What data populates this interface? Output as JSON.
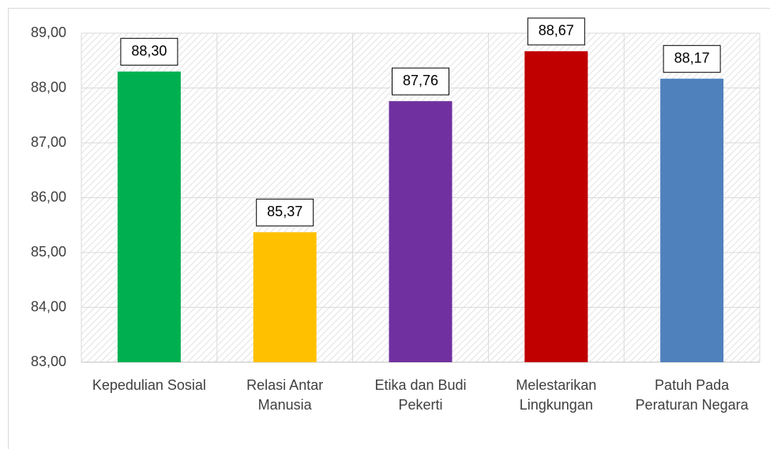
{
  "chart_data": {
    "type": "bar",
    "categories": [
      "Kepedulian Sosial",
      "Relasi Antar Manusia",
      "Etika dan Budi Pekerti",
      "Melestarikan Lingkungan",
      "Patuh Pada Peraturan Negara"
    ],
    "values": [
      88.3,
      85.37,
      87.76,
      88.67,
      88.17
    ],
    "value_labels": [
      "88,30",
      "85,37",
      "87,76",
      "88,67",
      "88,17"
    ],
    "colors": [
      "#00b050",
      "#ffc000",
      "#7030a0",
      "#c00000",
      "#4f81bd"
    ],
    "ylim": [
      83,
      89
    ],
    "yticks": [
      {
        "value": 83,
        "label": "83,00"
      },
      {
        "value": 84,
        "label": "84,00"
      },
      {
        "value": 85,
        "label": "85,00"
      },
      {
        "value": 86,
        "label": "86,00"
      },
      {
        "value": 87,
        "label": "87,00"
      },
      {
        "value": 88,
        "label": "88,00"
      },
      {
        "value": 89,
        "label": "89,00"
      }
    ],
    "grid": true
  }
}
